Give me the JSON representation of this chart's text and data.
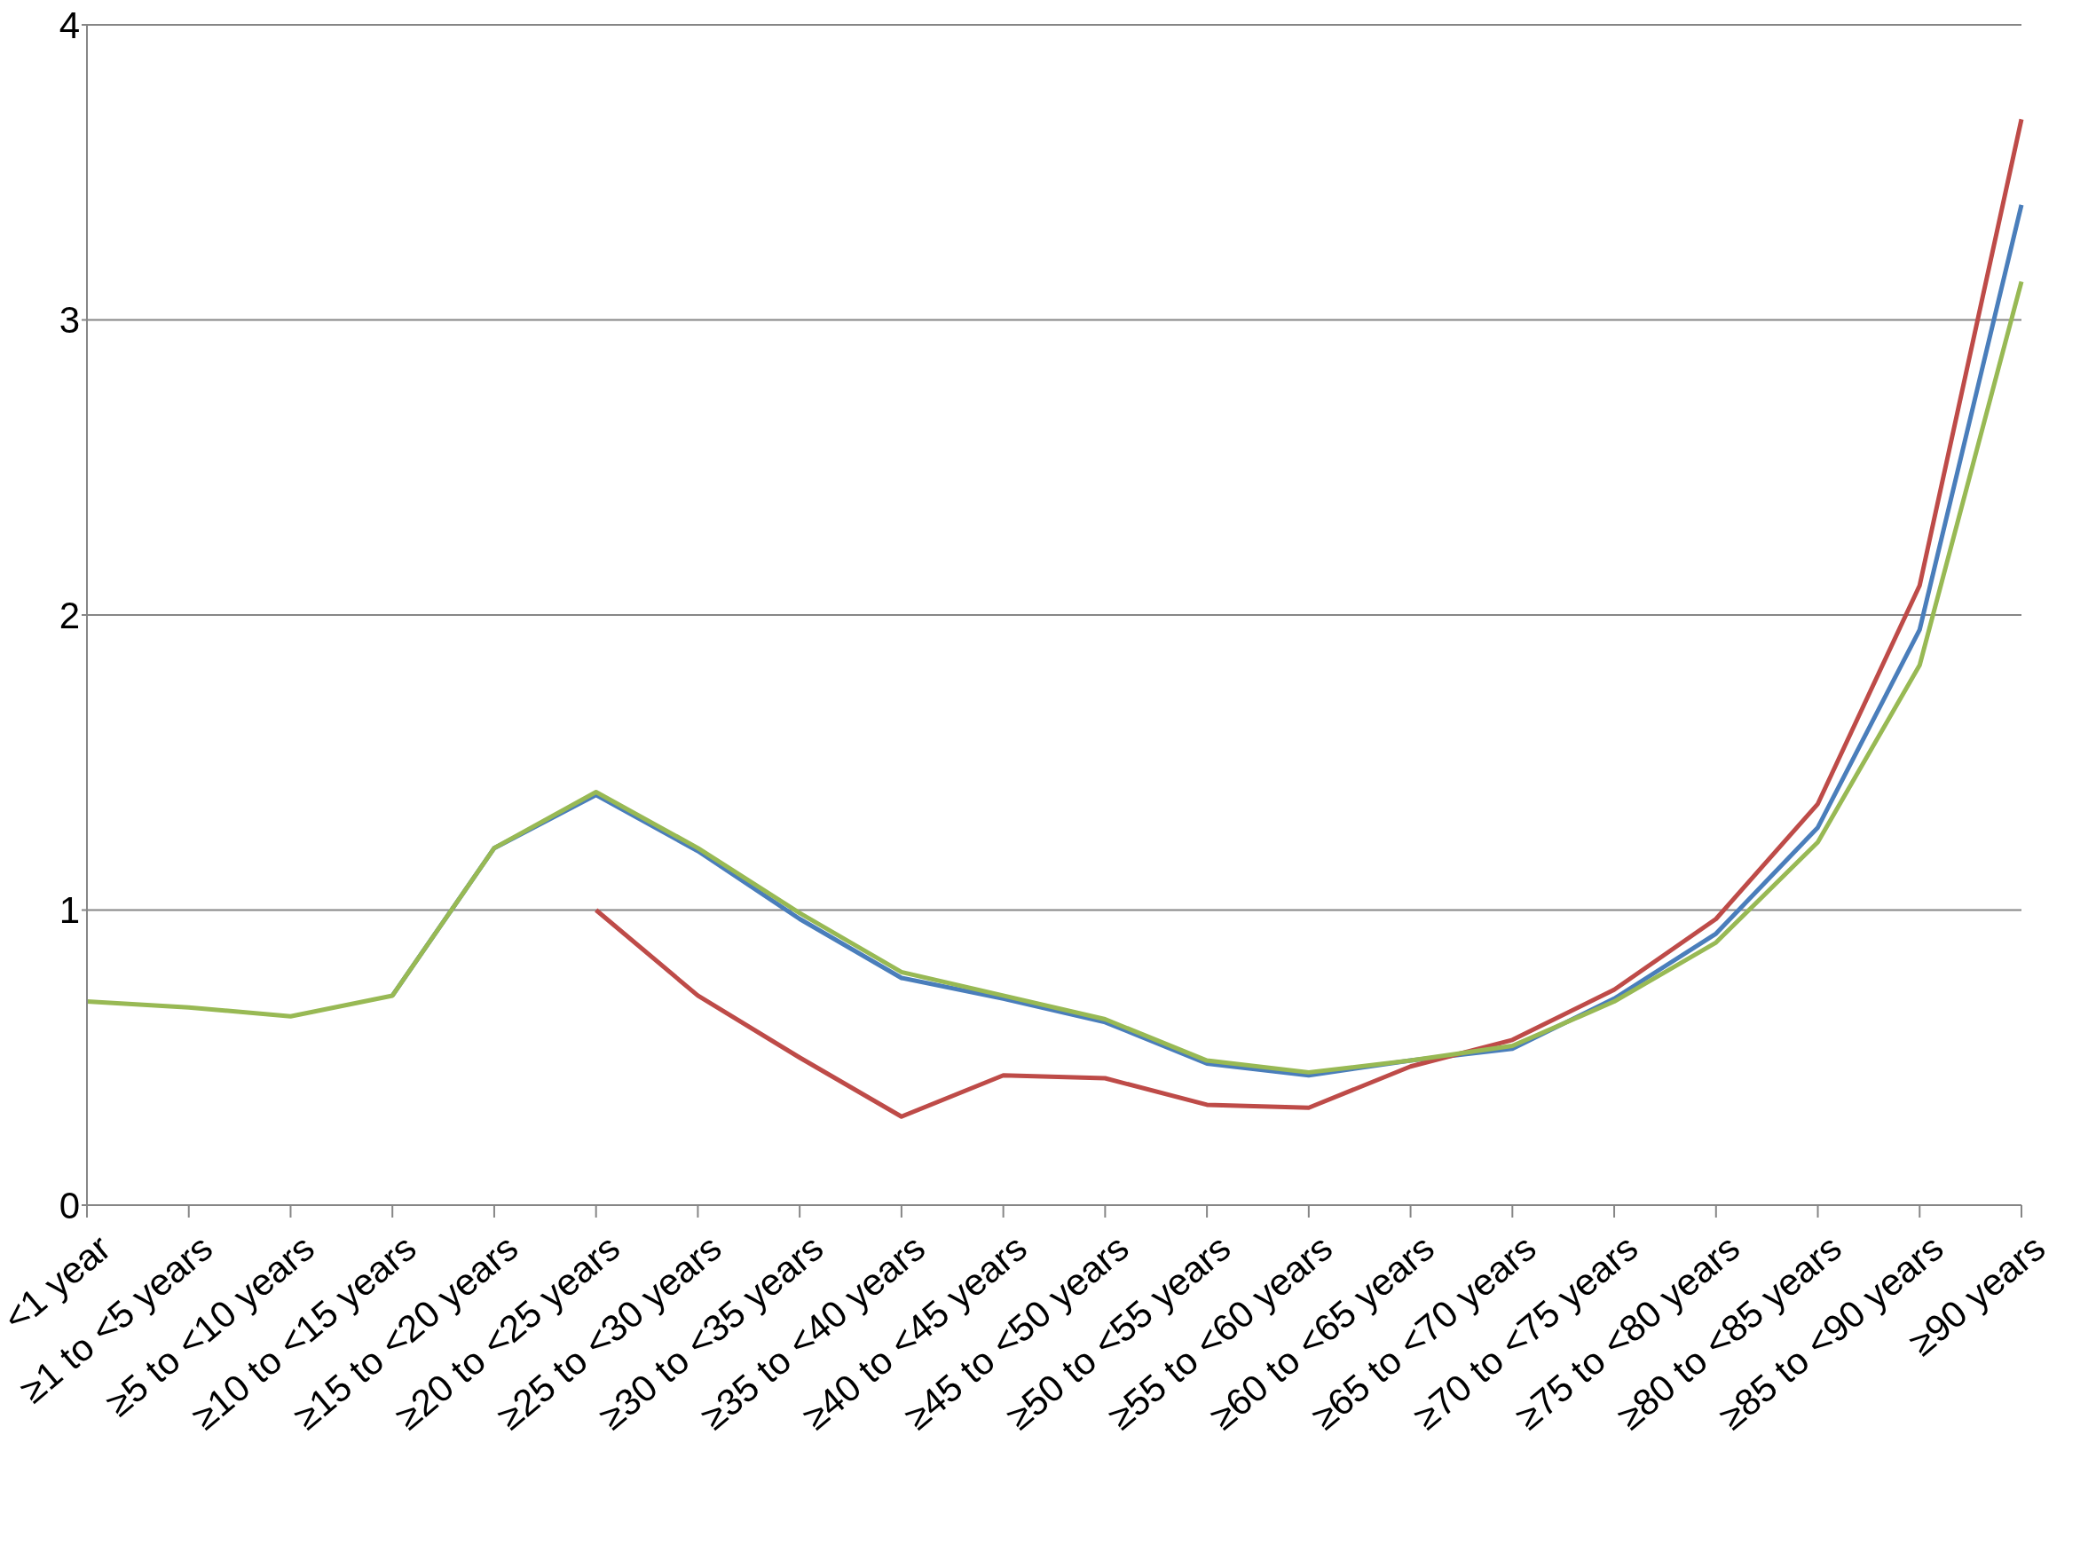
{
  "chart_data": {
    "type": "line",
    "categories": [
      "<1 year",
      "≥1 to <5 years",
      "≥5 to <10 years",
      "≥10 to <15 years",
      "≥15 to <20 years",
      "≥20 to <25 years",
      "≥25 to <30 years",
      "≥30 to <35 years",
      "≥35 to <40 years",
      "≥40 to <45 years",
      "≥45 to <50 years",
      "≥50 to <55 years",
      "≥55 to <60 years",
      "≥60 to <65 years",
      "≥65 to <70 years",
      "≥70 to <75 years",
      "≥75 to <80 years",
      "≥80 to <85 years",
      "≥85 to <90 years",
      "≥90 years"
    ],
    "series": [
      {
        "color": "#4a7ebb",
        "values": [
          null,
          null,
          null,
          0.71,
          1.21,
          1.39,
          1.2,
          0.97,
          0.77,
          0.7,
          0.62,
          0.48,
          0.44,
          0.49,
          0.53,
          0.7,
          0.92,
          1.28,
          1.95,
          3.39
        ]
      },
      {
        "color": "#be4b48",
        "values": [
          null,
          null,
          null,
          null,
          null,
          1.0,
          0.71,
          0.5,
          0.3,
          0.44,
          0.43,
          0.34,
          0.33,
          0.47,
          0.56,
          0.73,
          0.97,
          1.36,
          2.1,
          3.68
        ]
      },
      {
        "color": "#98b954",
        "values": [
          0.69,
          0.67,
          0.64,
          0.71,
          1.21,
          1.4,
          1.21,
          0.99,
          0.79,
          0.71,
          0.63,
          0.49,
          0.45,
          0.49,
          0.54,
          0.69,
          0.89,
          1.23,
          1.83,
          3.13
        ]
      }
    ],
    "ylim": [
      0,
      4
    ],
    "yticks": [
      0,
      1,
      2,
      3,
      4
    ],
    "grid": "y",
    "legend": false
  }
}
